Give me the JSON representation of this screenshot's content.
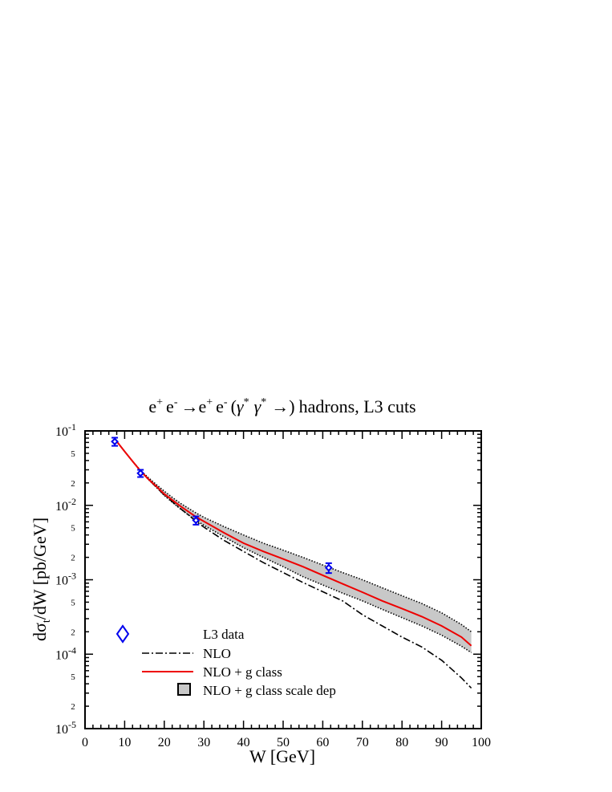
{
  "chart_data": {
    "type": "line",
    "title": "e⁺ e⁻ →e⁺ e⁻ (γ* γ* →) hadrons, L3 cuts",
    "title_parts": {
      "e": "e",
      "plus": "+",
      "minus": "-",
      "arrow": "→",
      "gamma": "γ",
      "star": "*",
      "open": "(",
      "close": "→)",
      "rest": "hadrons, L3 cuts"
    },
    "xlabel": "W [GeV]",
    "ylabel": "dσ",
    "ylabel_sub": "t",
    "ylabel_rest": "/dW [pb/GeV]",
    "xlim": [
      0,
      100
    ],
    "ylim": [
      1e-05,
      0.1
    ],
    "yscale": "log",
    "x_ticks": [
      "0",
      "10",
      "20",
      "30",
      "40",
      "50",
      "60",
      "70",
      "80",
      "90",
      "100"
    ],
    "y_ticks": [
      {
        "base": "10",
        "exp": "-1"
      },
      {
        "base": "10",
        "exp": "-2"
      },
      {
        "base": "10",
        "exp": "-3"
      },
      {
        "base": "10",
        "exp": "-4"
      },
      {
        "base": "10",
        "exp": "-5"
      }
    ],
    "y_minor_labels": [
      "5",
      "2"
    ],
    "legend_position": "bottom-left",
    "colors": {
      "data": "#0000ee",
      "nlo": "#000000",
      "nlo_g": "#ee0000",
      "band_fill": "#c8c8c8",
      "band_edge": "#000000"
    },
    "series": [
      {
        "name": "L3 data",
        "kind": "points",
        "x": [
          7.5,
          14,
          28,
          61.5
        ],
        "y": [
          0.072,
          0.027,
          0.0063,
          0.00145
        ],
        "yerr": [
          0.009,
          0.003,
          0.0008,
          0.00022
        ]
      },
      {
        "name": "NLO",
        "kind": "dash-dot",
        "x": [
          7.5,
          10,
          12,
          14,
          16,
          18,
          20,
          22,
          24,
          26,
          28,
          30,
          35,
          40,
          45,
          50,
          55,
          60,
          65,
          70,
          75,
          80,
          85,
          90,
          95,
          97.5
        ],
        "y": [
          0.078,
          0.053,
          0.039,
          0.029,
          0.0225,
          0.0175,
          0.0138,
          0.0112,
          0.0091,
          0.0075,
          0.0061,
          0.0051,
          0.0034,
          0.0024,
          0.0017,
          0.00125,
          0.00092,
          0.00069,
          0.00052,
          0.00034,
          0.00024,
          0.00017,
          0.000125,
          8.3e-05,
          4.8e-05,
          3.5e-05
        ]
      },
      {
        "name": "NLO + g class",
        "kind": "line",
        "x": [
          7.5,
          10,
          12,
          14,
          16,
          18,
          20,
          22,
          24,
          26,
          28,
          30,
          35,
          40,
          45,
          50,
          55,
          60,
          65,
          70,
          75,
          80,
          85,
          90,
          95,
          97.5
        ],
        "y": [
          0.078,
          0.053,
          0.039,
          0.029,
          0.0225,
          0.018,
          0.0142,
          0.0118,
          0.0098,
          0.0083,
          0.007,
          0.0061,
          0.0043,
          0.0031,
          0.0024,
          0.0019,
          0.0015,
          0.00115,
          0.00088,
          0.00068,
          0.00052,
          0.00041,
          0.00032,
          0.00024,
          0.00017,
          0.00013
        ]
      },
      {
        "name": "NLO + g class scale dep",
        "kind": "band",
        "x": [
          7.5,
          10,
          12,
          14,
          16,
          18,
          20,
          22,
          24,
          26,
          28,
          30,
          35,
          40,
          45,
          50,
          55,
          60,
          65,
          70,
          75,
          80,
          85,
          90,
          95,
          97.5
        ],
        "y_low": [
          0.078,
          0.053,
          0.039,
          0.029,
          0.0222,
          0.0175,
          0.0136,
          0.011,
          0.009,
          0.0075,
          0.0063,
          0.0054,
          0.0038,
          0.0027,
          0.002,
          0.0015,
          0.0011,
          0.00085,
          0.00066,
          0.00052,
          0.0004,
          0.00031,
          0.00024,
          0.00018,
          0.000128,
          0.000105
        ],
        "y_high": [
          0.078,
          0.053,
          0.039,
          0.0295,
          0.0235,
          0.019,
          0.0155,
          0.0128,
          0.0107,
          0.0092,
          0.0079,
          0.0069,
          0.0052,
          0.004,
          0.0031,
          0.0025,
          0.002,
          0.00158,
          0.00125,
          0.001,
          0.00078,
          0.00061,
          0.00048,
          0.00036,
          0.00025,
          0.0002
        ]
      }
    ]
  }
}
